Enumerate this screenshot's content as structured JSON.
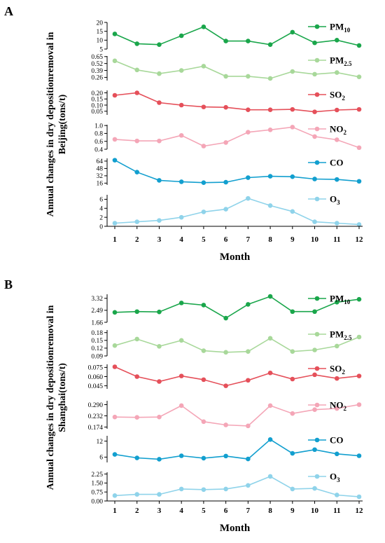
{
  "chart_data": [
    {
      "panel": "A",
      "type": "line",
      "ylabel_lines": [
        "Annual changes in dry depositionremoval in",
        "Beijing(tons/t)"
      ],
      "xlabel": "Month",
      "categories": [
        "1",
        "2",
        "3",
        "4",
        "5",
        "6",
        "7",
        "8",
        "9",
        "10",
        "11",
        "12"
      ],
      "series": [
        {
          "name": "PM10",
          "label_main": "PM",
          "label_sub": "10",
          "color": "#1aa64b",
          "ylim": [
            5,
            20
          ],
          "ticks": [
            "5",
            "10",
            "15",
            "20"
          ],
          "values": [
            13.5,
            8,
            7.5,
            12.5,
            17.5,
            9.5,
            9.5,
            7.5,
            14.5,
            8.5,
            10,
            7
          ]
        },
        {
          "name": "PM2.5",
          "label_main": "PM",
          "label_sub": "2.5",
          "color": "#a8d89a",
          "ylim": [
            0.2,
            0.66
          ],
          "ticks": [
            "0.26",
            "0.39",
            "0.52",
            "0.65"
          ],
          "values": [
            0.57,
            0.4,
            0.33,
            0.39,
            0.47,
            0.28,
            0.28,
            0.24,
            0.37,
            0.32,
            0.35,
            0.27
          ]
        },
        {
          "name": "SO2",
          "label_main": "SO",
          "label_sub": "2",
          "color": "#e5505a",
          "ylim": [
            0.02,
            0.22
          ],
          "ticks": [
            "0.05",
            "0.10",
            "0.15",
            "0.20"
          ],
          "values": [
            0.18,
            0.2,
            0.12,
            0.1,
            0.085,
            0.082,
            0.062,
            0.062,
            0.065,
            0.045,
            0.06,
            0.065
          ]
        },
        {
          "name": "NO2",
          "label_main": "NO",
          "label_sub": "2",
          "color": "#f4a6b7",
          "ylim": [
            0.4,
            1.02
          ],
          "ticks": [
            "0.4",
            "0.6",
            "0.8",
            "1.0"
          ],
          "values": [
            0.65,
            0.61,
            0.61,
            0.75,
            0.48,
            0.57,
            0.83,
            0.89,
            0.96,
            0.72,
            0.64,
            0.44
          ]
        },
        {
          "name": "CO",
          "label_main": "CO",
          "label_sub": "",
          "color": "#129fcf",
          "ylim": [
            12,
            70
          ],
          "ticks": [
            "16",
            "32",
            "48",
            "64"
          ],
          "values": [
            66,
            40,
            22,
            19,
            17,
            18,
            28,
            31,
            30,
            25,
            24,
            20
          ]
        },
        {
          "name": "O3",
          "label_main": "O",
          "label_sub": "3",
          "color": "#8fd3ea",
          "ylim": [
            0,
            7
          ],
          "ticks": [
            "0",
            "2",
            "4",
            "6"
          ],
          "values": [
            0.7,
            1.0,
            1.3,
            2.0,
            3.2,
            3.8,
            6.2,
            4.6,
            3.3,
            1.0,
            0.7,
            0.4
          ]
        }
      ]
    },
    {
      "panel": "B",
      "type": "line",
      "ylabel_lines": [
        "Annual changes in dry depositionremoval in",
        "Shanghai(tons/t)"
      ],
      "xlabel": "Month",
      "categories": [
        "1",
        "2",
        "3",
        "4",
        "5",
        "6",
        "7",
        "8",
        "9",
        "10",
        "11",
        "12"
      ],
      "series": [
        {
          "name": "PM10",
          "label_main": "PM",
          "label_sub": "10",
          "color": "#1aa64b",
          "ylim": [
            1.66,
            3.6
          ],
          "ticks": [
            "1.66",
            "2.49",
            "3.32"
          ],
          "values": [
            2.35,
            2.4,
            2.38,
            3.0,
            2.85,
            1.95,
            2.9,
            3.45,
            2.4,
            2.4,
            3.05,
            3.25
          ]
        },
        {
          "name": "PM2.5",
          "label_main": "PM",
          "label_sub": "2.5",
          "color": "#a8d89a",
          "ylim": [
            0.09,
            0.19
          ],
          "ticks": [
            "0.09",
            "0.12",
            "0.15",
            "0.18"
          ],
          "values": [
            0.13,
            0.155,
            0.127,
            0.15,
            0.11,
            0.104,
            0.107,
            0.158,
            0.107,
            0.113,
            0.128,
            0.163
          ]
        },
        {
          "name": "SO2",
          "label_main": "SO",
          "label_sub": "2",
          "color": "#e5505a",
          "ylim": [
            0.04,
            0.08
          ],
          "ticks": [
            "0.045",
            "0.060",
            "0.075"
          ],
          "values": [
            0.076,
            0.06,
            0.052,
            0.061,
            0.055,
            0.045,
            0.054,
            0.066,
            0.056,
            0.063,
            0.057,
            0.061
          ]
        },
        {
          "name": "NO2",
          "label_main": "NO",
          "label_sub": "2",
          "color": "#f4a6b7",
          "ylim": [
            0.165,
            0.31
          ],
          "ticks": [
            "0.174",
            "0.232",
            "0.290"
          ],
          "values": [
            0.226,
            0.224,
            0.226,
            0.285,
            0.202,
            0.185,
            0.18,
            0.285,
            0.244,
            0.264,
            0.27,
            0.29
          ]
        },
        {
          "name": "CO",
          "label_main": "CO",
          "label_sub": "",
          "color": "#129fcf",
          "ylim": [
            4,
            14
          ],
          "ticks": [
            "6",
            "12"
          ],
          "values": [
            7,
            5.7,
            5.2,
            6.5,
            5.6,
            6.4,
            5.3,
            12.6,
            7.4,
            8.8,
            7.2,
            6.5
          ]
        },
        {
          "name": "O3",
          "label_main": "O",
          "label_sub": "3",
          "color": "#8fd3ea",
          "ylim": [
            0,
            2.4
          ],
          "ticks": [
            "0.00",
            "0.75",
            "1.50",
            "2.25"
          ],
          "values": [
            0.45,
            0.55,
            0.55,
            1.0,
            0.95,
            1.0,
            1.3,
            2.05,
            1.0,
            1.05,
            0.5,
            0.35
          ]
        }
      ]
    }
  ]
}
